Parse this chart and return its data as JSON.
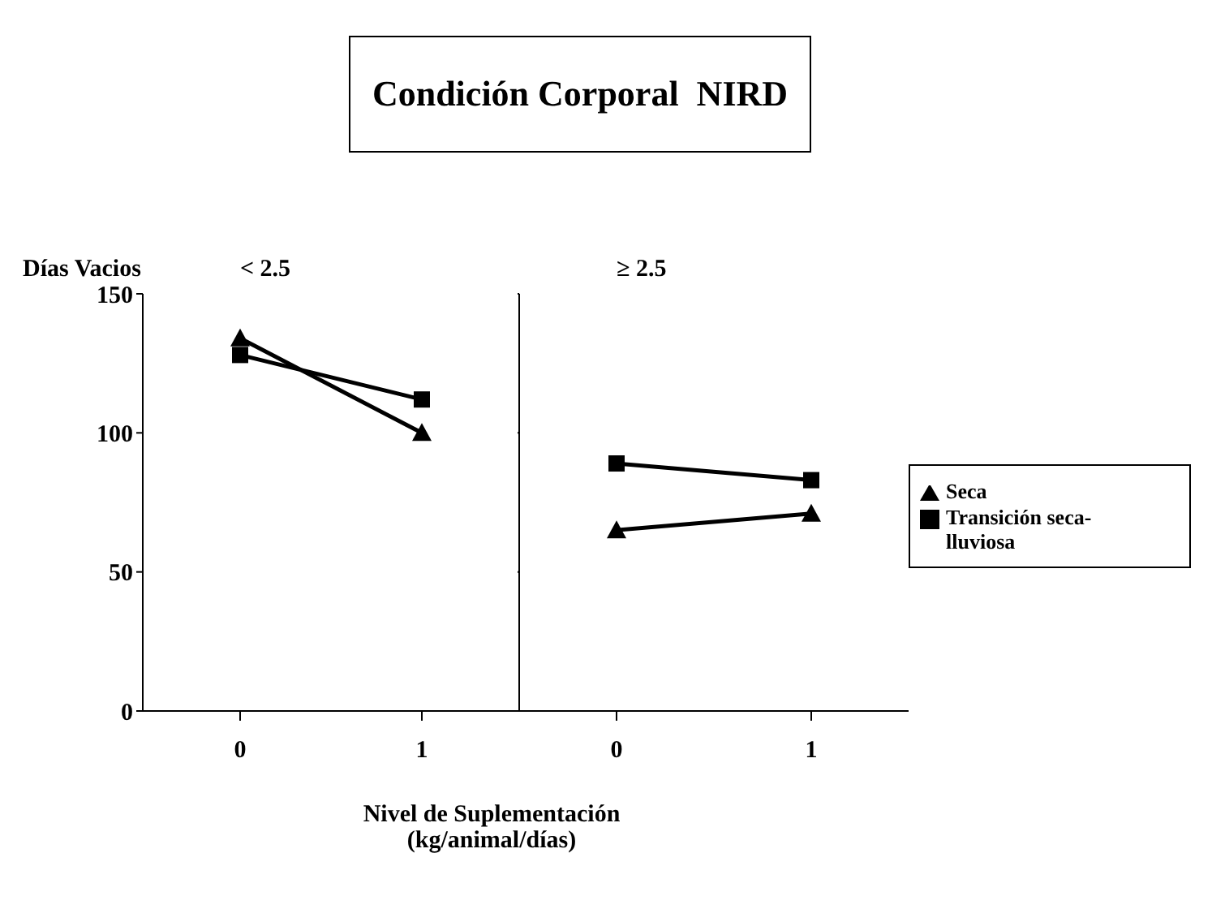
{
  "chart_data": [
    {
      "type": "line",
      "title": "Condición Corporal  NIRD",
      "subtitle": "< 2.5",
      "ylabel": "Días Vacios",
      "xlabel": "Nivel de Suplementación\n(kg/animal/días)",
      "categories": [
        "0",
        "1"
      ],
      "ylim": [
        0,
        150
      ],
      "yticks": [
        0,
        50,
        100,
        150
      ],
      "series": [
        {
          "color": "#000000",
          "marker": "triangle",
          "values": [
            134,
            100
          ]
        },
        {
          "color": "#000000",
          "marker": "square",
          "values": [
            128,
            112
          ]
        }
      ]
    },
    {
      "type": "line",
      "subtitle": "≥ 2.5",
      "categories": [
        "0",
        "1"
      ],
      "ylim": [
        0,
        150
      ],
      "yticks": [
        0,
        50,
        100,
        150
      ],
      "tick_labels": "x",
      "legend": "right",
      "series": [
        {
          "name": "Seca",
          "color": "#000000",
          "marker": "triangle",
          "values": [
            65,
            71
          ]
        },
        {
          "name": "Transición seca-lluviosa",
          "color": "#000000",
          "marker": "square",
          "values": [
            89,
            83
          ]
        }
      ]
    }
  ]
}
